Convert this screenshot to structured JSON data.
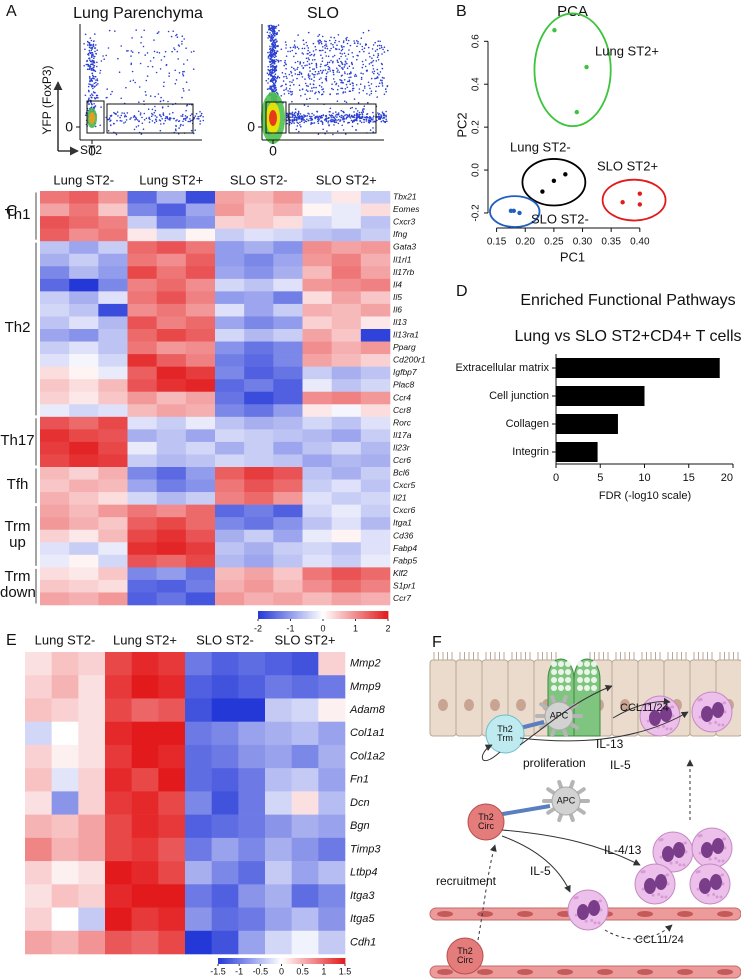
{
  "panel_labels": [
    "A",
    "B",
    "C",
    "D",
    "E",
    "F"
  ],
  "panel_a": {
    "plots": [
      "Lung Parenchyma",
      "SLO"
    ],
    "y_label": "YFP (FoxP3)",
    "x_label": "ST2",
    "zero_tick": 0
  },
  "chart_data": [
    {
      "type": "scatter",
      "title": "PCA",
      "x_label": "PC1",
      "y_label": "PC2",
      "xlim": [
        0.135,
        0.43
      ],
      "ylim": [
        -0.27,
        0.69
      ],
      "xticks": [
        0.15,
        {
          "value": 0.2,
          "label": "0.20"
        },
        0.25,
        {
          "value": 0.3,
          "label": "0.30"
        },
        0.35,
        {
          "value": 0.4,
          "label": "0.40"
        }
      ],
      "yticks": [
        -0.2,
        {
          "value": 0,
          "label": "0.0"
        },
        0.2,
        0.4,
        0.6
      ],
      "series": [
        {
          "name": "Lung ST2+",
          "color": "#3cc43c",
          "x": [
            0.251,
            0.307,
            0.29
          ],
          "values": [
            0.652,
            0.48,
            0.27
          ]
        },
        {
          "name": "Lung ST2-",
          "color": "#000000",
          "x": [
            0.23,
            0.25,
            0.27
          ],
          "values": [
            -0.1,
            -0.05,
            -0.02
          ]
        },
        {
          "name": "SLO ST2+",
          "color": "#e31a1c",
          "x": [
            0.37,
            0.4,
            0.4
          ],
          "values": [
            -0.15,
            -0.16,
            -0.11
          ]
        },
        {
          "name": "SLO ST2-",
          "color": "#1f5fbf",
          "x": [
            0.175,
            0.18,
            0.19
          ],
          "values": [
            -0.19,
            -0.19,
            -0.2
          ]
        }
      ]
    },
    {
      "type": "heatmap",
      "column_groups": [
        "Lung ST2-",
        "Lung ST2+",
        "SLO ST2-",
        "SLO ST2+"
      ],
      "row_groups": [
        {
          "label": "Th1",
          "genes": [
            "Tbx21",
            "Eomes",
            "Cxcr3",
            "Ifng"
          ]
        },
        {
          "label": "Th2",
          "genes": [
            "Gata3",
            "Il1rl1",
            "Il17rb",
            "Il4",
            "Il5",
            "Il6",
            "Il13",
            "Il13ra1",
            "Pparg",
            "Cd200r1",
            "Igfbp7",
            "Plac8",
            "Ccr4",
            "Ccr8"
          ]
        },
        {
          "label": "Th17",
          "genes": [
            "Rorc",
            "Il17a",
            "Il23r",
            "Ccr6"
          ]
        },
        {
          "label": "Tfh",
          "genes": [
            "Bcl6",
            "Cxcr5",
            "Il21"
          ]
        },
        {
          "label": "Trm up",
          "genes": [
            "Cxcr6",
            "Itga1",
            "Cd36",
            "Fabp4",
            "Fabp5"
          ]
        },
        {
          "label": "Trm down",
          "genes": [
            "Klf2",
            "S1pr1",
            "Ccr7"
          ]
        }
      ],
      "values": [
        [
          1.2,
          1.4,
          0.9,
          -1.5,
          -0.8,
          -1.8,
          0.8,
          0.6,
          0.9,
          -0.3,
          0.2,
          -0.5
        ],
        [
          0.8,
          1.2,
          0.5,
          -1.2,
          -1.6,
          -0.9,
          0.9,
          0.5,
          0.7,
          0.1,
          -0.2,
          0.3
        ],
        [
          1.5,
          1.3,
          1.1,
          -0.5,
          -1.3,
          -1.1,
          0.4,
          0.5,
          0.3,
          -0.4,
          -0.2,
          -0.6
        ],
        [
          1.4,
          1.0,
          1.2,
          0.2,
          -0.4,
          0.1,
          -0.5,
          -0.3,
          -0.4,
          -0.6,
          -0.7,
          -0.5
        ],
        [
          -0.6,
          -0.9,
          -0.5,
          1.3,
          1.5,
          1.2,
          -1.0,
          -0.8,
          -1.1,
          1.0,
          0.8,
          0.9
        ],
        [
          -0.8,
          -0.5,
          -0.9,
          1.2,
          1.0,
          1.4,
          -1.0,
          -1.2,
          -0.9,
          0.9,
          1.1,
          0.7
        ],
        [
          -1.2,
          -0.7,
          -1.0,
          1.6,
          1.2,
          1.5,
          -0.9,
          -1.1,
          -0.8,
          0.6,
          1.2,
          0.8
        ],
        [
          -1.5,
          -2.0,
          -1.2,
          1.1,
          1.3,
          1.0,
          -0.4,
          -0.6,
          -0.3,
          0.9,
          1.0,
          1.1
        ],
        [
          -0.5,
          -0.8,
          -0.3,
          1.2,
          1.5,
          1.1,
          -1.0,
          -0.9,
          -1.3,
          0.3,
          0.8,
          0.5
        ],
        [
          -0.4,
          -0.6,
          -1.8,
          1.0,
          1.2,
          0.9,
          -0.3,
          -0.9,
          -0.5,
          0.7,
          0.6,
          0.8
        ],
        [
          -0.6,
          -0.3,
          -0.7,
          1.5,
          1.1,
          1.3,
          -0.9,
          -1.2,
          -1.0,
          0.4,
          0.6,
          0.2
        ],
        [
          -0.9,
          -1.1,
          -0.6,
          1.3,
          1.6,
          1.4,
          -0.4,
          -0.7,
          -0.5,
          0.8,
          0.5,
          -1.9
        ],
        [
          -0.5,
          -0.3,
          -0.6,
          1.2,
          0.9,
          1.0,
          -1.1,
          -1.4,
          -1.2,
          1.0,
          0.7,
          0.9
        ],
        [
          -0.3,
          -0.1,
          -0.4,
          1.8,
          1.4,
          1.1,
          -1.3,
          -1.5,
          -1.2,
          0.8,
          0.6,
          0.4
        ],
        [
          0.3,
          0.1,
          -0.2,
          1.4,
          1.9,
          1.7,
          -1.2,
          -1.6,
          -1.4,
          -0.5,
          -0.8,
          -0.6
        ],
        [
          0.5,
          0.3,
          0.6,
          1.5,
          1.8,
          1.9,
          -1.5,
          -1.3,
          -1.6,
          -0.2,
          -0.6,
          -0.4
        ],
        [
          0.4,
          0.2,
          0.5,
          0.9,
          0.6,
          0.8,
          -1.4,
          -1.8,
          -1.6,
          1.0,
          1.1,
          0.9
        ],
        [
          -0.2,
          -0.4,
          -0.3,
          0.6,
          0.8,
          0.7,
          -1.2,
          -1.4,
          -1.0,
          0.2,
          -0.1,
          0.3
        ],
        [
          1.5,
          1.3,
          1.6,
          -0.3,
          -0.5,
          -0.2,
          -0.6,
          -0.8,
          -0.7,
          -0.4,
          -0.6,
          -0.3
        ],
        [
          1.8,
          1.6,
          1.5,
          -0.8,
          -0.6,
          -0.9,
          -0.4,
          -0.5,
          -0.6,
          -0.7,
          -0.9,
          -0.5
        ],
        [
          1.7,
          1.9,
          1.6,
          -0.2,
          -0.6,
          -0.4,
          -0.8,
          -0.5,
          -0.9,
          -0.6,
          -0.4,
          -0.7
        ],
        [
          1.6,
          1.8,
          1.7,
          -0.5,
          -0.7,
          -0.6,
          -0.4,
          -0.5,
          -0.6,
          -0.9,
          -0.7,
          -0.8
        ],
        [
          0.6,
          0.4,
          0.7,
          -1.2,
          -1.5,
          -1.0,
          1.4,
          1.7,
          1.5,
          -0.6,
          -0.8,
          -0.5
        ],
        [
          0.5,
          0.7,
          0.6,
          -0.9,
          -1.3,
          -1.1,
          1.2,
          1.5,
          1.3,
          -0.5,
          -0.3,
          -0.6
        ],
        [
          0.7,
          0.5,
          0.3,
          -0.4,
          -0.7,
          -0.5,
          1.1,
          1.3,
          0.9,
          -0.3,
          -0.5,
          -0.4
        ],
        [
          0.8,
          0.6,
          0.9,
          1.2,
          1.0,
          1.3,
          -1.5,
          -1.3,
          -1.6,
          -0.4,
          -0.2,
          -0.5
        ],
        [
          0.9,
          0.7,
          0.5,
          1.4,
          1.6,
          1.3,
          -1.2,
          -1.4,
          -1.1,
          -0.6,
          -0.3,
          -0.7
        ],
        [
          0.4,
          0.2,
          0.6,
          1.6,
          1.8,
          1.5,
          -0.8,
          -0.5,
          -0.9,
          -0.2,
          0.1,
          -0.3
        ],
        [
          -0.3,
          -0.5,
          -0.2,
          1.8,
          1.9,
          1.7,
          -0.6,
          -0.8,
          -0.5,
          -0.4,
          -0.6,
          -0.3
        ],
        [
          -0.2,
          0.1,
          -0.4,
          1.5,
          1.3,
          1.6,
          -0.7,
          -0.9,
          -0.6,
          -0.3,
          -0.5,
          -0.2
        ],
        [
          0.3,
          0.2,
          0.5,
          -1.2,
          -1.0,
          -1.4,
          0.6,
          0.8,
          0.5,
          1.2,
          1.5,
          1.3
        ],
        [
          0.5,
          0.4,
          0.3,
          -1.5,
          -1.6,
          -1.3,
          0.7,
          0.9,
          0.6,
          1.0,
          1.3,
          1.1
        ],
        [
          0.8,
          0.7,
          0.9,
          -1.6,
          -1.4,
          -1.7,
          0.9,
          0.7,
          0.8,
          0.6,
          0.8,
          0.7
        ]
      ],
      "colorscale": {
        "lim": [
          -2,
          2
        ],
        "ticks": [
          -2,
          -1,
          0,
          1,
          2
        ],
        "colors": [
          "#2438d8",
          "#ffffff",
          "#e31a1c"
        ]
      }
    },
    {
      "type": "bar",
      "orientation": "horizontal",
      "title": "Enriched Functional Pathways",
      "subtitle": "Lung vs SLO ST2+CD4+ T cells",
      "x_label": "FDR (-log10 scale)",
      "categories": [
        "Extracellular matrix",
        "Cell junction",
        "Collagen",
        "Integrin"
      ],
      "values": [
        18.5,
        10,
        7,
        4.7
      ],
      "color": "#000000",
      "xlim": [
        0,
        20
      ],
      "xticks": [
        0,
        5,
        10,
        15,
        20
      ]
    },
    {
      "type": "heatmap",
      "column_groups": [
        "Lung ST2-",
        "Lung ST2+",
        "SLO ST2-",
        "SLO ST2+"
      ],
      "rows": [
        "Mmp2",
        "Mmp9",
        "Adam8",
        "Col1a1",
        "Col1a2",
        "Fn1",
        "Dcn",
        "Bgn",
        "Timp3",
        "Ltbp4",
        "Itga3",
        "Itga5",
        "Cdh1"
      ],
      "values": [
        [
          0.2,
          0.4,
          0.3,
          1.2,
          1.4,
          1.3,
          -1.0,
          -1.2,
          -1.1,
          -1.2,
          -1.3,
          0.3
        ],
        [
          0.3,
          0.5,
          0.2,
          1.3,
          1.5,
          1.4,
          -1.2,
          -1.3,
          -1.2,
          -1.0,
          -1.1,
          -1.0
        ],
        [
          0.4,
          0.3,
          0.2,
          1.2,
          1.0,
          1.1,
          -1.3,
          -1.6,
          -1.5,
          -0.4,
          -0.3,
          0.1
        ],
        [
          -0.3,
          0.0,
          0.2,
          1.4,
          1.6,
          1.5,
          -1.0,
          -0.9,
          -0.7,
          -0.6,
          -0.5,
          -0.7
        ],
        [
          0.3,
          0.1,
          0.2,
          1.3,
          1.5,
          1.4,
          -1.1,
          -1.0,
          -0.8,
          -0.7,
          -0.9,
          -0.6
        ],
        [
          0.4,
          -0.2,
          0.3,
          1.4,
          1.2,
          1.5,
          -1.1,
          -1.2,
          -1.0,
          -0.5,
          -0.4,
          -0.7
        ],
        [
          0.2,
          -0.8,
          0.3,
          1.3,
          1.4,
          1.2,
          -0.9,
          -1.3,
          -1.0,
          -0.3,
          0.2,
          -0.5
        ],
        [
          0.5,
          0.4,
          0.6,
          1.2,
          1.4,
          1.3,
          -1.2,
          -1.1,
          -1.0,
          -0.8,
          -0.6,
          -0.7
        ],
        [
          0.8,
          0.5,
          0.6,
          1.2,
          1.3,
          1.1,
          -1.0,
          -0.7,
          -0.9,
          -0.6,
          -0.8,
          -1.0
        ],
        [
          0.3,
          0.1,
          0.2,
          1.5,
          1.4,
          1.2,
          -0.6,
          -0.9,
          -1.1,
          -0.4,
          -0.7,
          -0.5
        ],
        [
          0.2,
          0.4,
          0.3,
          1.4,
          1.6,
          1.5,
          -1.0,
          -1.2,
          -0.8,
          -0.6,
          -1.1,
          -0.9
        ],
        [
          0.3,
          0.0,
          -0.4,
          1.5,
          1.3,
          1.4,
          -0.8,
          -1.1,
          -1.0,
          -0.7,
          -0.5,
          -0.8
        ],
        [
          0.6,
          0.5,
          0.7,
          1.1,
          1.0,
          1.2,
          -1.5,
          -1.3,
          -0.7,
          -0.3,
          -0.1,
          -0.4
        ]
      ],
      "colorscale": {
        "lim": [
          -1.5,
          1.5
        ],
        "ticks": [
          -1.5,
          -1,
          -0.5,
          0,
          0.5,
          1,
          1.5
        ],
        "colors": [
          "#2438d8",
          "#ffffff",
          "#e31a1c"
        ]
      }
    }
  ],
  "diagram_f": {
    "labels": [
      "APC",
      "Th2 Trm",
      "proliferation",
      "IL-13",
      "IL-5",
      "CCL11/24",
      "APC",
      "Th2 Circ",
      "recruitment",
      "IL-4/13",
      "IL-5",
      "CCL11/24",
      "Th2 Circ"
    ]
  }
}
